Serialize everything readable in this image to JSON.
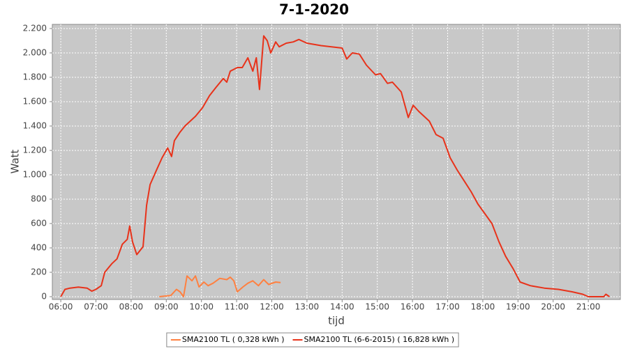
{
  "chart_data": {
    "type": "line",
    "title": "7-1-2020",
    "x_label": "tijd",
    "y_label": "Watt",
    "xlim": [
      5.76,
      21.91
    ],
    "ylim": [
      -23,
      2234
    ],
    "grid": true,
    "legend": "bottom",
    "xticks": [
      {
        "value": 6,
        "label": "06:00"
      },
      {
        "value": 7,
        "label": "07:00"
      },
      {
        "value": 8,
        "label": "08:00"
      },
      {
        "value": 9,
        "label": "09:00"
      },
      {
        "value": 10,
        "label": "10:00"
      },
      {
        "value": 11,
        "label": "11:00"
      },
      {
        "value": 12,
        "label": "12:00"
      },
      {
        "value": 13,
        "label": "13:00"
      },
      {
        "value": 14,
        "label": "14:00"
      },
      {
        "value": 15,
        "label": "15:00"
      },
      {
        "value": 16,
        "label": "16:00"
      },
      {
        "value": 17,
        "label": "17:00"
      },
      {
        "value": 18,
        "label": "18:00"
      },
      {
        "value": 19,
        "label": "19:00"
      },
      {
        "value": 20,
        "label": "20:00"
      },
      {
        "value": 21,
        "label": "21:00"
      }
    ],
    "yticks": [
      0,
      200,
      400,
      600,
      800,
      {
        "value": 1000,
        "label": "1.000"
      },
      {
        "value": 1200,
        "label": "1.200"
      },
      {
        "value": 1400,
        "label": "1.400"
      },
      {
        "value": 1600,
        "label": "1.600"
      },
      {
        "value": 1800,
        "label": "1.800"
      },
      {
        "value": 2000,
        "label": "2.000"
      },
      {
        "value": 2200,
        "label": "2.200"
      }
    ],
    "series": [
      {
        "name": "SMA2100 TL ( 0,328 kWh )",
        "color": "#ff8040",
        "x": [
          8.8,
          9.13,
          9.29,
          9.39,
          9.49,
          9.59,
          9.73,
          9.83,
          9.93,
          10.07,
          10.19,
          10.33,
          10.52,
          10.72,
          10.82,
          10.92,
          11.02,
          11.18,
          11.32,
          11.46,
          11.62,
          11.77,
          11.91,
          12.11,
          12.25
        ],
        "values": [
          0,
          10,
          60,
          40,
          0,
          170,
          130,
          170,
          80,
          120,
          90,
          110,
          150,
          140,
          160,
          130,
          40,
          80,
          110,
          130,
          90,
          140,
          100,
          120,
          115
        ]
      },
      {
        "name": "SMA2100 TL (6-6-2015) ( 16,828 kWh )",
        "color": "#e8321a",
        "x": [
          6.0,
          6.12,
          6.26,
          6.5,
          6.75,
          6.88,
          7.0,
          7.15,
          7.25,
          7.45,
          7.6,
          7.75,
          7.89,
          7.96,
          8.04,
          8.16,
          8.34,
          8.44,
          8.54,
          8.74,
          8.88,
          9.04,
          9.15,
          9.23,
          9.39,
          9.53,
          9.83,
          10.03,
          10.23,
          10.42,
          10.62,
          10.72,
          10.82,
          11.02,
          11.16,
          11.32,
          11.46,
          11.56,
          11.65,
          11.77,
          11.87,
          11.97,
          12.11,
          12.21,
          12.41,
          12.61,
          12.77,
          13.0,
          13.4,
          13.7,
          14.0,
          14.13,
          14.29,
          14.49,
          14.69,
          14.95,
          15.09,
          15.29,
          15.43,
          15.68,
          15.88,
          16.02,
          16.18,
          16.48,
          16.67,
          16.87,
          17.07,
          17.27,
          17.47,
          17.67,
          17.86,
          18.06,
          18.26,
          18.46,
          18.65,
          18.86,
          19.06,
          19.35,
          19.75,
          20.15,
          20.54,
          20.84,
          21.0,
          21.44,
          21.5,
          21.6
        ],
        "values": [
          0,
          60,
          70,
          78,
          70,
          45,
          60,
          90,
          200,
          270,
          310,
          430,
          470,
          580,
          450,
          345,
          410,
          750,
          920,
          1050,
          1140,
          1220,
          1150,
          1280,
          1350,
          1400,
          1480,
          1550,
          1650,
          1720,
          1790,
          1760,
          1850,
          1880,
          1880,
          1960,
          1850,
          1960,
          1700,
          2140,
          2100,
          2000,
          2090,
          2050,
          2080,
          2090,
          2110,
          2080,
          2060,
          2050,
          2040,
          1950,
          2000,
          1990,
          1900,
          1820,
          1830,
          1750,
          1760,
          1680,
          1470,
          1570,
          1520,
          1440,
          1330,
          1300,
          1140,
          1040,
          950,
          860,
          760,
          680,
          600,
          450,
          330,
          230,
          120,
          90,
          70,
          60,
          40,
          20,
          0,
          0,
          20,
          0
        ]
      }
    ]
  }
}
